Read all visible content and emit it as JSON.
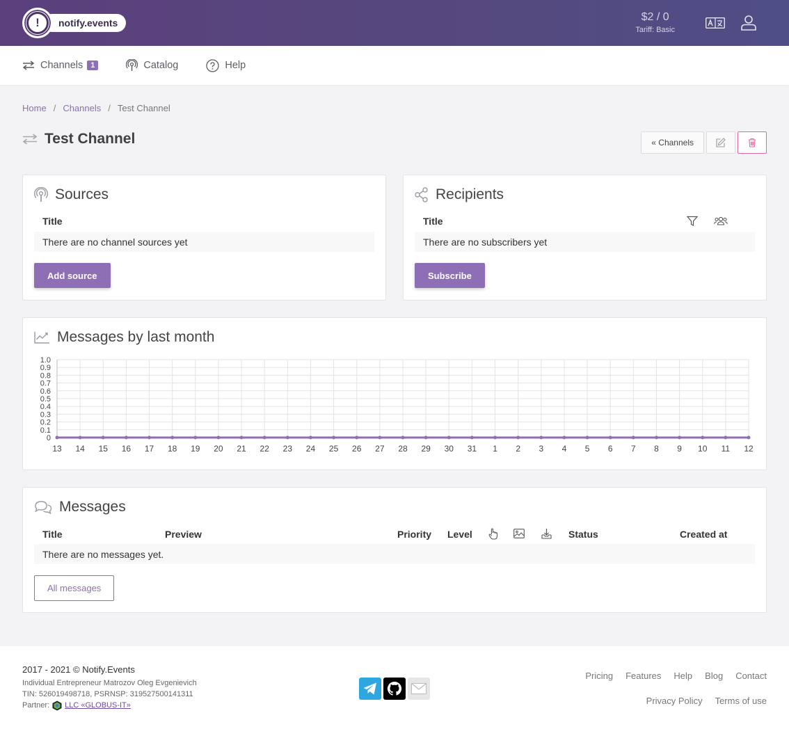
{
  "header": {
    "brand": "notify.events",
    "logo_mark": "!",
    "balance": "$2 / 0",
    "tariff": "Tariff: Basic",
    "language_icon": "translate-icon",
    "user_icon": "user-icon"
  },
  "nav": {
    "channels": "Channels",
    "channels_count": "1",
    "catalog": "Catalog",
    "help": "Help"
  },
  "breadcrumb": {
    "home": "Home",
    "sep1": "/",
    "channels": "Channels",
    "sep2": "/",
    "current": "Test Channel"
  },
  "page": {
    "title": "Test Channel",
    "back_button": "« Channels",
    "edit_icon": "edit-icon",
    "delete_icon": "trash-icon"
  },
  "sources": {
    "title": "Sources",
    "col_title": "Title",
    "empty": "There are no channel sources yet",
    "add_button": "Add source"
  },
  "recipients": {
    "title": "Recipients",
    "col_title": "Title",
    "empty": "There are no subscribers yet",
    "subscribe_button": "Subscribe"
  },
  "chart_card": {
    "title": "Messages by last month"
  },
  "chart_data": {
    "type": "line",
    "title": "Messages by last month",
    "xlabel": "",
    "ylabel": "",
    "x": [
      "13",
      "14",
      "15",
      "16",
      "17",
      "18",
      "19",
      "20",
      "21",
      "22",
      "23",
      "24",
      "25",
      "26",
      "27",
      "28",
      "29",
      "30",
      "31",
      "1",
      "2",
      "3",
      "4",
      "5",
      "6",
      "7",
      "8",
      "9",
      "10",
      "11",
      "12"
    ],
    "series": [
      {
        "values": [
          0,
          0,
          0,
          0,
          0,
          0,
          0,
          0,
          0,
          0,
          0,
          0,
          0,
          0,
          0,
          0,
          0,
          0,
          0,
          0,
          0,
          0,
          0,
          0,
          0,
          0,
          0,
          0,
          0,
          0,
          0
        ]
      }
    ],
    "yticks": [
      "1.0",
      "0.9",
      "0.8",
      "0.7",
      "0.6",
      "0.5",
      "0.4",
      "0.3",
      "0.2",
      "0.1",
      "0"
    ],
    "ylim": [
      0,
      1
    ],
    "grid": true,
    "color": "#8e6fb5"
  },
  "messages": {
    "title": "Messages",
    "columns": {
      "title": "Title",
      "preview": "Preview",
      "priority": "Priority",
      "level": "Level",
      "status": "Status",
      "created_at": "Created at"
    },
    "empty": "There are no messages yet.",
    "all_button": "All messages"
  },
  "footer": {
    "copyright": "2017 - 2021 © Notify.Events",
    "entrepreneur": "Individual Entrepreneur Matrozov Oleg Evgenievich",
    "tin": "TIN: 526019498718, PSRNSP: 319527500141311",
    "partner_label": "Partner:",
    "partner_name": "LLC «GLOBUS-IT»",
    "links_row1": [
      "Pricing",
      "Features",
      "Help",
      "Blog",
      "Contact"
    ],
    "links_row2": [
      "Privacy Policy",
      "Terms of use"
    ],
    "colors": {
      "accent": "#8e6fb5",
      "telegram": "#2ea6df",
      "github": "#000000",
      "mail": "#e6e6e6"
    }
  }
}
